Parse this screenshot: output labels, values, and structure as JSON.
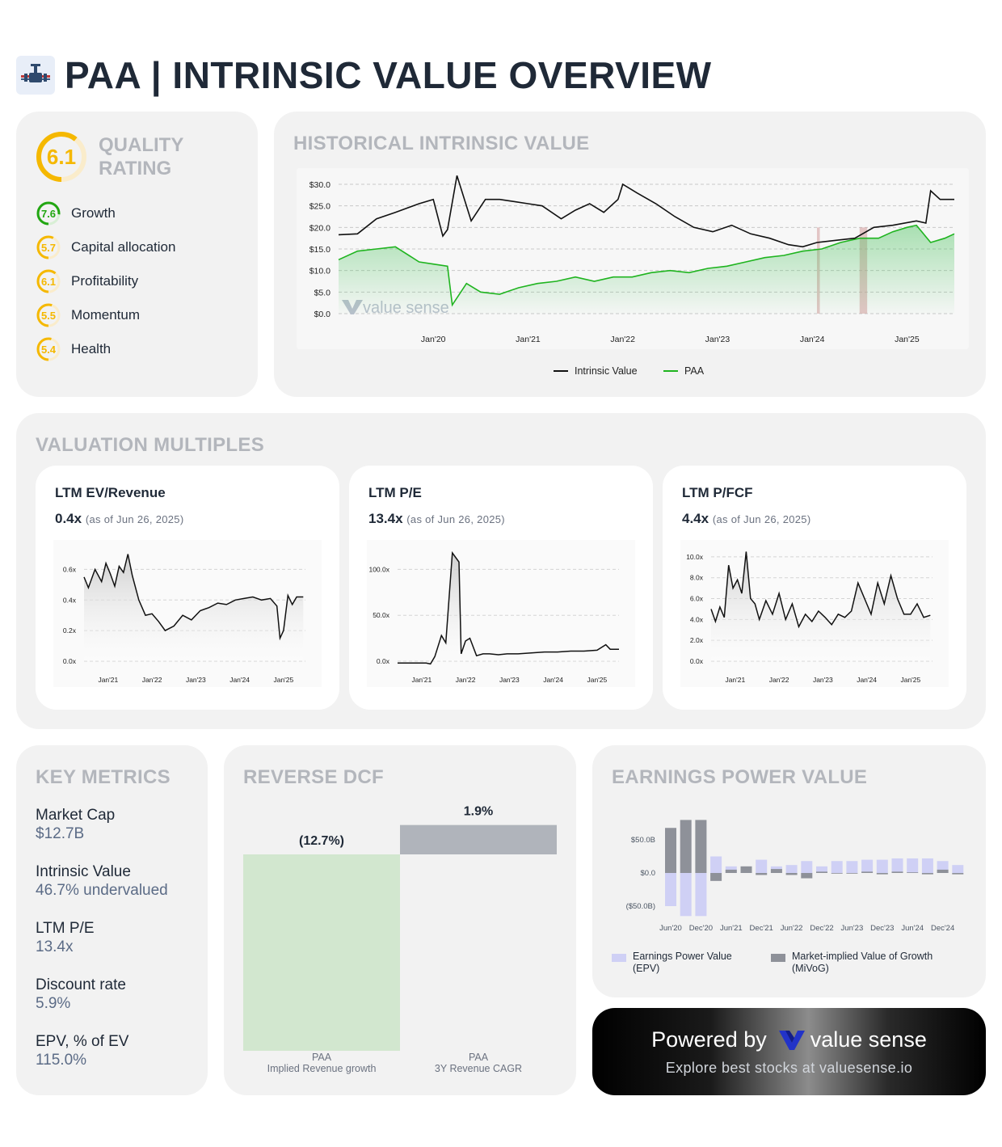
{
  "header": {
    "title": "PAA | INTRINSIC VALUE OVERVIEW"
  },
  "quality": {
    "title": "QUALITY RATING",
    "score": "6.1",
    "items": [
      {
        "value": "7.6",
        "label": "Growth",
        "color": "#22a612"
      },
      {
        "value": "5.7",
        "label": "Capital allocation",
        "color": "#f5b800"
      },
      {
        "value": "6.1",
        "label": "Profitability",
        "color": "#f5b800"
      },
      {
        "value": "5.5",
        "label": "Momentum",
        "color": "#f5b800"
      },
      {
        "value": "5.4",
        "label": "Health",
        "color": "#f5b800"
      }
    ]
  },
  "historical": {
    "title": "HISTORICAL INTRINSIC VALUE",
    "watermark": "value sense",
    "legend": {
      "intrinsic": "Intrinsic Value",
      "price": "PAA"
    },
    "chart_data": {
      "type": "line",
      "yticks": [
        "$30.0",
        "$25.0",
        "$20.0",
        "$15.0",
        "$10.0",
        "$5.0",
        "$0.0"
      ],
      "xticks": [
        "Jan'20",
        "Jan'21",
        "Jan'22",
        "Jan'23",
        "Jan'24",
        "Jan'25"
      ],
      "ylim": [
        0,
        32
      ],
      "series": [
        {
          "name": "Intrinsic Value",
          "color": "#111111",
          "x": [
            2019.0,
            2019.2,
            2019.4,
            2019.6,
            2019.85,
            2020.0,
            2020.1,
            2020.15,
            2020.25,
            2020.4,
            2020.55,
            2020.7,
            2020.85,
            2021.0,
            2021.15,
            2021.35,
            2021.5,
            2021.65,
            2021.8,
            2021.95,
            2022.0,
            2022.15,
            2022.35,
            2022.55,
            2022.75,
            2022.95,
            2023.15,
            2023.35,
            2023.55,
            2023.75,
            2023.9,
            2024.05,
            2024.25,
            2024.45,
            2024.65,
            2024.85,
            2025.1,
            2025.2,
            2025.25,
            2025.35,
            2025.5
          ],
          "y": [
            18.3,
            18.5,
            22.0,
            23.5,
            25.5,
            26.5,
            18.0,
            19.5,
            32.0,
            21.5,
            26.5,
            26.5,
            26.0,
            25.5,
            25.0,
            22.0,
            24.0,
            25.5,
            23.5,
            26.5,
            30.0,
            28.0,
            25.5,
            22.5,
            20.0,
            19.0,
            20.5,
            18.5,
            17.5,
            16.0,
            15.5,
            16.5,
            17.0,
            17.5,
            20.0,
            20.5,
            21.5,
            21.0,
            28.5,
            26.5,
            26.5
          ]
        },
        {
          "name": "PAA",
          "color": "#1fb41f",
          "x": [
            2019.0,
            2019.2,
            2019.4,
            2019.6,
            2019.85,
            2020.0,
            2020.15,
            2020.2,
            2020.35,
            2020.5,
            2020.7,
            2020.9,
            2021.1,
            2021.3,
            2021.5,
            2021.7,
            2021.9,
            2022.1,
            2022.3,
            2022.5,
            2022.7,
            2022.9,
            2023.1,
            2023.3,
            2023.5,
            2023.7,
            2023.9,
            2024.1,
            2024.3,
            2024.5,
            2024.7,
            2024.85,
            2025.0,
            2025.1,
            2025.25,
            2025.4,
            2025.5
          ],
          "y": [
            12.5,
            14.5,
            15.0,
            15.5,
            12.0,
            11.5,
            11.0,
            2.0,
            7.0,
            5.0,
            4.5,
            6.0,
            7.0,
            7.5,
            8.5,
            7.5,
            8.5,
            8.5,
            9.5,
            10.0,
            9.5,
            10.5,
            11.0,
            12.0,
            13.0,
            13.5,
            14.5,
            15.0,
            16.5,
            17.5,
            17.5,
            19.0,
            20.0,
            20.5,
            16.5,
            17.5,
            18.5
          ]
        }
      ]
    }
  },
  "valuation": {
    "title": "VALUATION MULTIPLES",
    "as_of": "(as of Jun 26, 2025)",
    "cards": [
      {
        "title": "LTM EV/Revenue",
        "value": "0.4x",
        "chart_data": {
          "type": "area",
          "yticks": [
            "0.6x",
            "0.4x",
            "0.2x",
            "0.0x"
          ],
          "ylim": [
            0,
            0.75
          ],
          "xticks": [
            "Jan'21",
            "Jan'22",
            "Jan'23",
            "Jan'24",
            "Jan'25"
          ],
          "x": [
            2020.45,
            2020.55,
            2020.7,
            2020.85,
            2020.95,
            2021.05,
            2021.15,
            2021.25,
            2021.35,
            2021.45,
            2021.55,
            2021.7,
            2021.85,
            2022.0,
            2022.15,
            2022.3,
            2022.5,
            2022.7,
            2022.9,
            2023.1,
            2023.3,
            2023.5,
            2023.7,
            2023.9,
            2024.1,
            2024.3,
            2024.5,
            2024.7,
            2024.85,
            2024.92,
            2025.0,
            2025.1,
            2025.2,
            2025.3,
            2025.45
          ],
          "y": [
            0.55,
            0.48,
            0.6,
            0.52,
            0.64,
            0.57,
            0.49,
            0.62,
            0.58,
            0.7,
            0.56,
            0.4,
            0.3,
            0.31,
            0.26,
            0.2,
            0.23,
            0.3,
            0.27,
            0.33,
            0.35,
            0.38,
            0.37,
            0.4,
            0.41,
            0.42,
            0.4,
            0.41,
            0.36,
            0.15,
            0.2,
            0.43,
            0.37,
            0.42,
            0.42
          ]
        }
      },
      {
        "title": "LTM P/E",
        "value": "13.4x",
        "chart_data": {
          "type": "area",
          "yticks": [
            "100.0x",
            "50.0x",
            "0.0x"
          ],
          "ylim": [
            0,
            125
          ],
          "xticks": [
            "Jan'21",
            "Jan'22",
            "Jan'23",
            "Jan'24",
            "Jan'25"
          ],
          "x": [
            2020.45,
            2020.6,
            2020.8,
            2020.95,
            2021.1,
            2021.2,
            2021.3,
            2021.45,
            2021.55,
            2021.7,
            2021.85,
            2021.9,
            2022.0,
            2022.1,
            2022.25,
            2022.4,
            2022.55,
            2022.75,
            2022.95,
            2023.2,
            2023.5,
            2023.8,
            2024.1,
            2024.4,
            2024.7,
            2025.0,
            2025.2,
            2025.3,
            2025.5
          ],
          "y": [
            -2,
            -2,
            -2,
            -2,
            -2,
            -3,
            5,
            28,
            20,
            118,
            108,
            8,
            22,
            25,
            6,
            8,
            8,
            7,
            8,
            8,
            9,
            10,
            10,
            11,
            11,
            12,
            18,
            13,
            13
          ]
        }
      },
      {
        "title": "LTM P/FCF",
        "value": "4.4x",
        "chart_data": {
          "type": "area",
          "yticks": [
            "10.0x",
            "8.0x",
            "6.0x",
            "4.0x",
            "2.0x",
            "0.0x"
          ],
          "ylim": [
            0,
            11
          ],
          "xticks": [
            "Jan'21",
            "Jan'22",
            "Jan'23",
            "Jan'24",
            "Jan'25"
          ],
          "x": [
            2020.45,
            2020.55,
            2020.65,
            2020.75,
            2020.85,
            2020.95,
            2021.05,
            2021.15,
            2021.25,
            2021.35,
            2021.45,
            2021.55,
            2021.7,
            2021.85,
            2022.0,
            2022.15,
            2022.3,
            2022.45,
            2022.6,
            2022.75,
            2022.9,
            2023.05,
            2023.2,
            2023.35,
            2023.5,
            2023.65,
            2023.8,
            2023.95,
            2024.1,
            2024.25,
            2024.4,
            2024.55,
            2024.7,
            2024.85,
            2025.0,
            2025.15,
            2025.3,
            2025.45
          ],
          "y": [
            5.0,
            3.8,
            5.2,
            4.2,
            9.2,
            7.0,
            7.8,
            6.5,
            10.5,
            6.0,
            5.5,
            4.0,
            5.8,
            4.5,
            6.5,
            4.0,
            5.5,
            3.3,
            4.5,
            3.8,
            4.8,
            4.2,
            3.5,
            4.5,
            4.2,
            4.8,
            7.5,
            6.0,
            4.5,
            7.5,
            5.5,
            8.2,
            6.0,
            4.5,
            4.5,
            5.5,
            4.2,
            4.4
          ]
        }
      }
    ]
  },
  "key_metrics": {
    "title": "KEY METRICS",
    "items": [
      {
        "label": "Market Cap",
        "value": "$12.7B"
      },
      {
        "label": "Intrinsic Value",
        "value": "46.7% undervalued"
      },
      {
        "label": "LTM P/E",
        "value": "13.4x"
      },
      {
        "label": "Discount rate",
        "value": "5.9%"
      },
      {
        "label": "EPV, % of EV",
        "value": "115.0%"
      }
    ]
  },
  "reverse_dcf": {
    "title": "REVERSE DCF",
    "chart_data": {
      "type": "bar",
      "categories": [
        "PAA\nImplied Revenue growth",
        "PAA\n3Y Revenue CAGR"
      ],
      "values": [
        -12.7,
        1.9
      ],
      "labels": [
        "(12.7%)",
        "1.9%"
      ],
      "colors": [
        "#d2e7cf",
        "#b0b4bb"
      ],
      "cat_line1": [
        "PAA",
        "PAA"
      ],
      "cat_line2": [
        "Implied Revenue growth",
        "3Y Revenue CAGR"
      ]
    }
  },
  "epv": {
    "title": "EARNINGS POWER VALUE",
    "chart_data": {
      "type": "bar",
      "yticks": [
        "$50.0B",
        "$0.0",
        "($50.0B)"
      ],
      "xticks": [
        "Jun'20",
        "Dec'20",
        "Jun'21",
        "Dec'21",
        "Jun'22",
        "Dec'22",
        "Jun'23",
        "Dec'23",
        "Jun'24",
        "Dec'24"
      ],
      "ylim": [
        -65,
        80
      ],
      "series": [
        {
          "name": "Earnings Power Value (EPV)",
          "color": "#cfd0f5",
          "values": [
            -50,
            -65,
            -65,
            25,
            10,
            8,
            20,
            10,
            12,
            18,
            10,
            18,
            18,
            20,
            20,
            22,
            22,
            22,
            18,
            12
          ]
        },
        {
          "name": "Market-implied Value of Growth (MiVoG)",
          "color": "#8e9199",
          "values": [
            68,
            80,
            80,
            -12,
            5,
            10,
            -3,
            6,
            -3,
            -8,
            2,
            -1,
            -1,
            2,
            -2,
            2,
            1,
            -2,
            5,
            -2
          ]
        }
      ],
      "legend": {
        "epv_line1": "Earnings Power Value",
        "epv_line2": "(EPV)",
        "mivog_line1": "Market-implied Value of Growth",
        "mivog_line2": "(MiVoG)"
      }
    }
  },
  "powered": {
    "prefix": "Powered by",
    "brand": "value sense",
    "tagline": "Explore best stocks at valuesense.io"
  }
}
